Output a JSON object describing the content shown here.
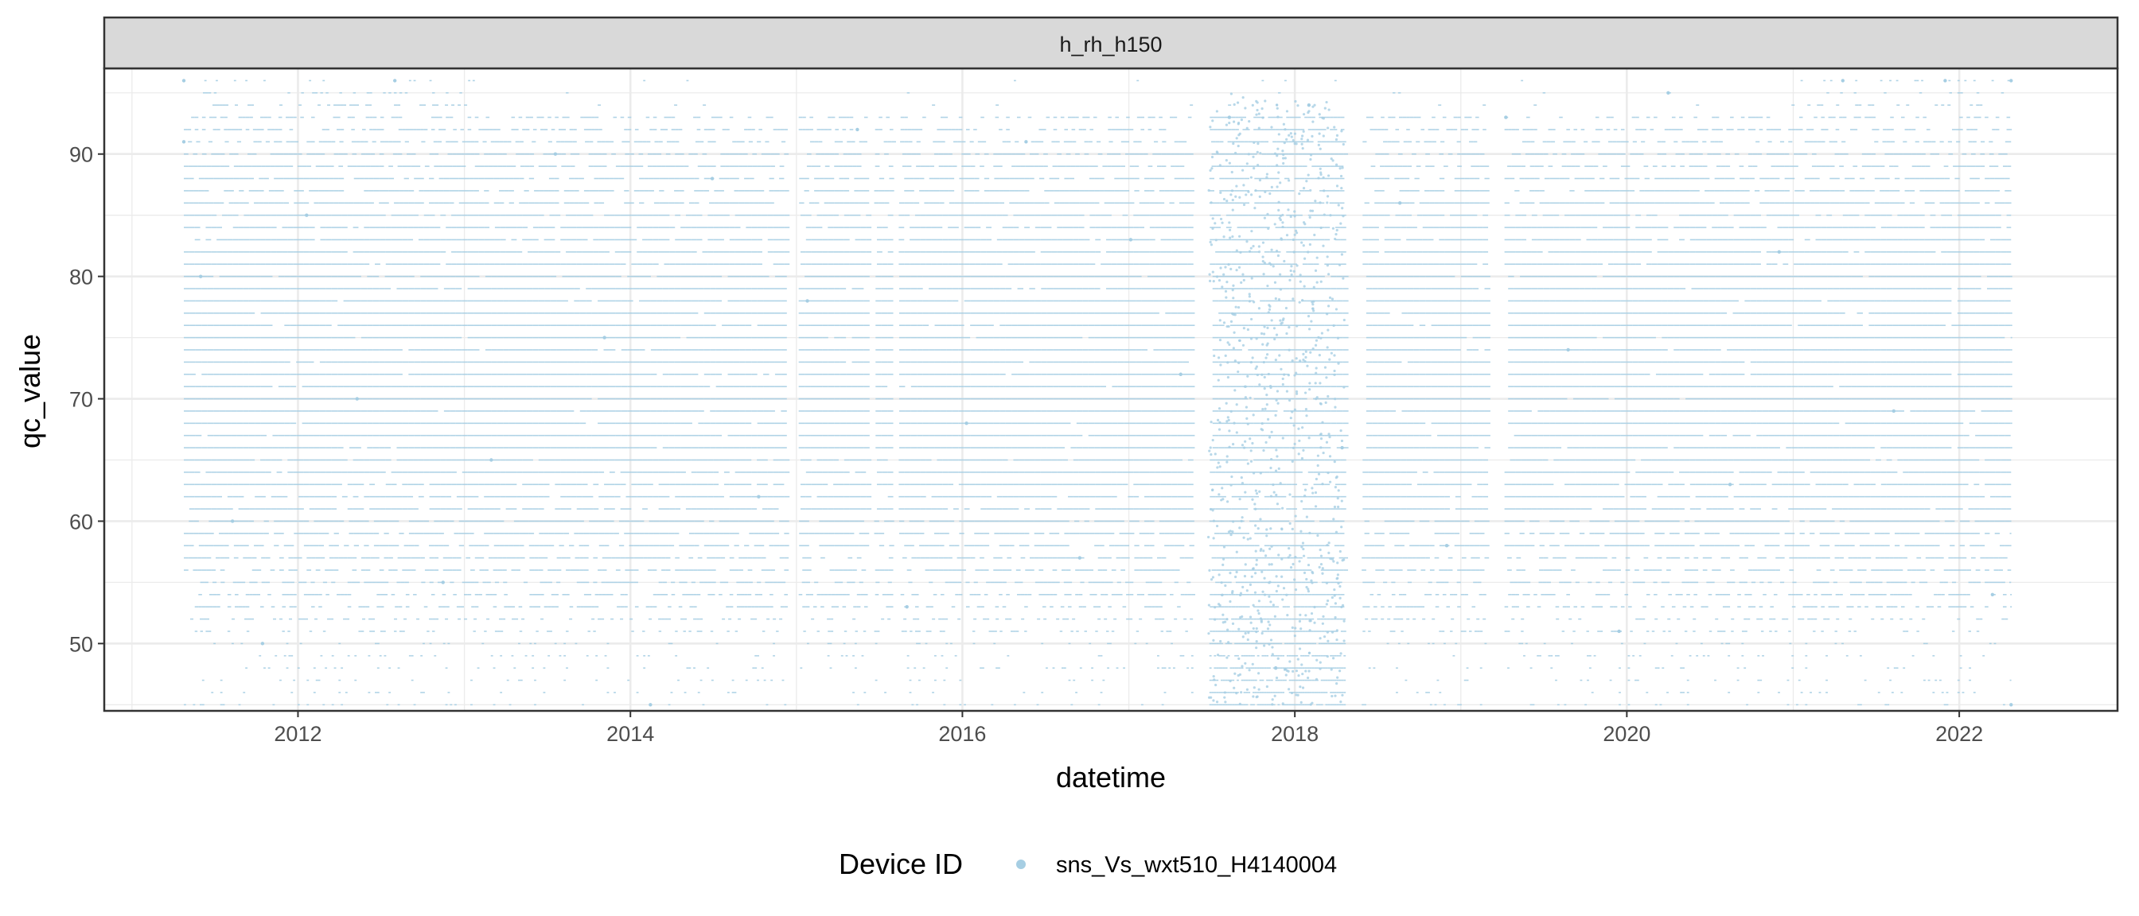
{
  "chart_data": {
    "type": "scatter",
    "facet_label": "h_rh_h150",
    "xlabel": "datetime",
    "ylabel": "qc_value",
    "x_ticks": [
      "2012",
      "2014",
      "2016",
      "2018",
      "2020",
      "2022"
    ],
    "y_ticks": [
      50,
      60,
      70,
      80,
      90
    ],
    "xlim": [
      "2010-11-01",
      "2022-12-15"
    ],
    "ylim": [
      44.5,
      97
    ],
    "grid": true,
    "legend": {
      "title": "Device ID",
      "position": "bottom",
      "entries": [
        {
          "name": "sns_Vs_wxt510_H4140004",
          "color": "#a6cee3"
        }
      ]
    },
    "series": [
      {
        "name": "sns_Vs_wxt510_H4140004",
        "color": "#a6cee3",
        "value_range": [
          45,
          96
        ],
        "resolution": 1,
        "points": [
          {
            "x": "2011-04-25",
            "y": 96
          },
          {
            "x": "2011-04-25",
            "y": 91
          },
          {
            "x": "2011-06-01",
            "y": 80
          },
          {
            "x": "2011-08-10",
            "y": 60
          },
          {
            "x": "2011-10-15",
            "y": 50
          },
          {
            "x": "2012-01-20",
            "y": 85
          },
          {
            "x": "2012-05-10",
            "y": 70
          },
          {
            "x": "2012-08-01",
            "y": 96
          },
          {
            "x": "2012-11-15",
            "y": 55
          },
          {
            "x": "2013-03-01",
            "y": 65
          },
          {
            "x": "2013-07-20",
            "y": 90
          },
          {
            "x": "2013-11-05",
            "y": 75
          },
          {
            "x": "2014-02-14",
            "y": 45
          },
          {
            "x": "2014-06-30",
            "y": 88
          },
          {
            "x": "2014-10-10",
            "y": 62
          },
          {
            "x": "2015-01-25",
            "y": 78
          },
          {
            "x": "2015-05-15",
            "y": 92
          },
          {
            "x": "2015-09-01",
            "y": 53
          },
          {
            "x": "2016-01-10",
            "y": 68
          },
          {
            "x": "2016-05-20",
            "y": 91
          },
          {
            "x": "2016-09-15",
            "y": 57
          },
          {
            "x": "2017-01-05",
            "y": 83
          },
          {
            "x": "2017-04-25",
            "y": 72
          },
          {
            "x": "2017-08-10",
            "y": 93
          },
          {
            "x": "2017-11-20",
            "y": 48
          },
          {
            "x": "2018-02-01",
            "y": 94
          },
          {
            "x": "2018-04-15",
            "y": 66
          },
          {
            "x": "2018-08-20",
            "y": 86
          },
          {
            "x": "2018-12-01",
            "y": 58
          },
          {
            "x": "2019-04-10",
            "y": 93
          },
          {
            "x": "2019-08-25",
            "y": 74
          },
          {
            "x": "2019-12-15",
            "y": 51
          },
          {
            "x": "2020-04-01",
            "y": 95
          },
          {
            "x": "2020-08-15",
            "y": 63
          },
          {
            "x": "2020-12-01",
            "y": 82
          },
          {
            "x": "2021-04-20",
            "y": 96
          },
          {
            "x": "2021-08-10",
            "y": 69
          },
          {
            "x": "2021-12-01",
            "y": 96
          },
          {
            "x": "2022-03-15",
            "y": 54
          },
          {
            "x": "2022-04-25",
            "y": 96
          },
          {
            "x": "2022-04-25",
            "y": 45
          }
        ],
        "gaps": [
          {
            "from": "2014-12-10",
            "to": "2015-01-05"
          },
          {
            "from": "2015-06-05",
            "to": "2015-06-20"
          },
          {
            "from": "2015-08-01",
            "to": "2015-08-12"
          },
          {
            "from": "2017-05-20",
            "to": "2017-06-25"
          },
          {
            "from": "2018-04-20",
            "to": "2018-05-25"
          },
          {
            "from": "2019-02-25",
            "to": "2019-04-05"
          }
        ]
      }
    ]
  }
}
